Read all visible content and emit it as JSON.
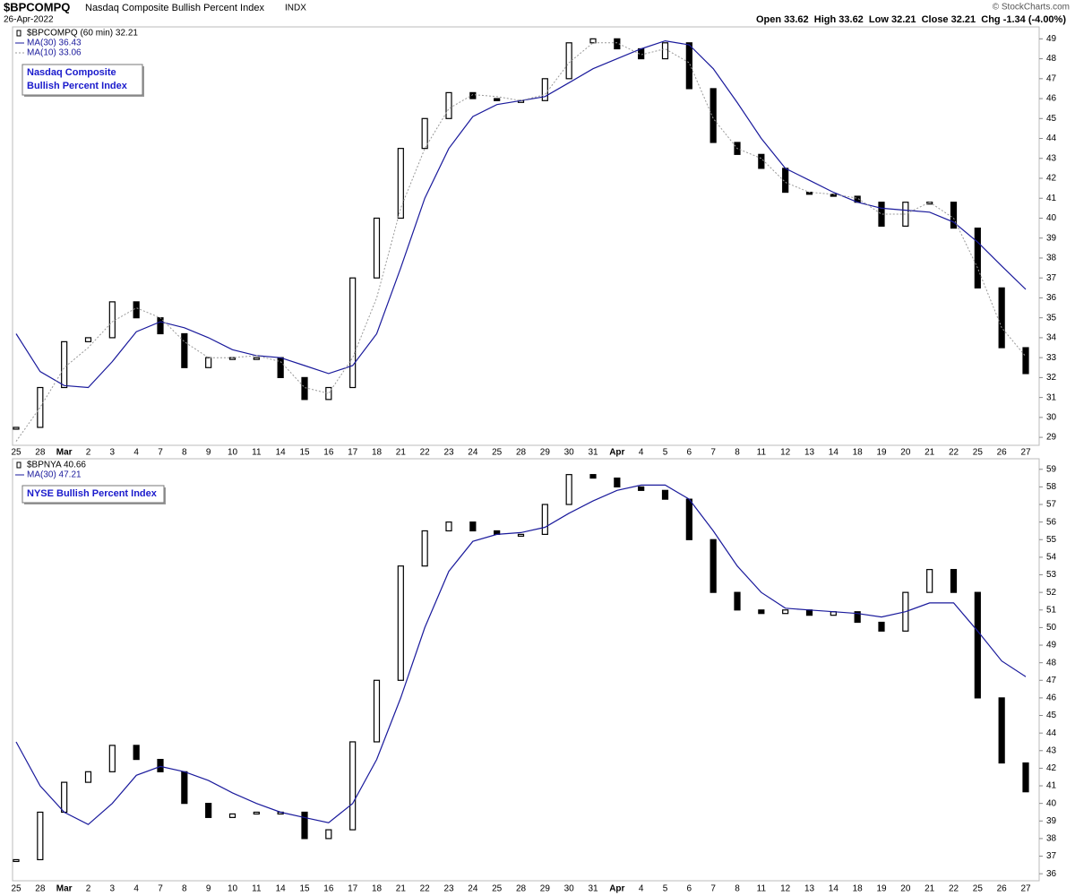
{
  "header": {
    "symbol": "$BPCOMPQ",
    "name": "Nasdaq Composite Bullish Percent Index",
    "exchange": "INDX",
    "date": "26-Apr-2022",
    "copyright": "© StockCharts.com",
    "quote": "Open 33.62  High 33.62  Low 32.21  Close 32.21  Chg -1.34 (-4.00%)"
  },
  "chart_data": [
    {
      "type": "line",
      "box_lines": [
        "Nasdaq Composite",
        "Bullish Percent Index"
      ],
      "categories": [
        "25",
        "28",
        "Mar",
        "2",
        "3",
        "4",
        "7",
        "8",
        "9",
        "10",
        "11",
        "14",
        "15",
        "16",
        "17",
        "18",
        "21",
        "22",
        "23",
        "24",
        "25",
        "28",
        "29",
        "30",
        "31",
        "Apr",
        "4",
        "5",
        "6",
        "7",
        "8",
        "11",
        "12",
        "13",
        "14",
        "18",
        "19",
        "20",
        "21",
        "22",
        "25",
        "26",
        "27"
      ],
      "ylim": [
        28.6,
        49.6
      ],
      "yticks": [
        29,
        30,
        31,
        32,
        33,
        34,
        35,
        36,
        37,
        38,
        39,
        40,
        41,
        42,
        43,
        44,
        45,
        46,
        47,
        48,
        49
      ],
      "series": [
        {
          "name": "$BPCOMPQ (60 min) 32.21",
          "color": "#000000",
          "style": "bars",
          "values": [
            29.5,
            31.5,
            33.8,
            34,
            35.8,
            35,
            34.2,
            32.5,
            33,
            33,
            33,
            32,
            30.9,
            31.5,
            37,
            40,
            43.5,
            45,
            46.3,
            46,
            45.9,
            45.9,
            47,
            48.8,
            49,
            48.5,
            48,
            48.8,
            46.5,
            43.8,
            43.2,
            42.5,
            41.3,
            41.2,
            41.1,
            40.8,
            39.6,
            40.8,
            40.8,
            39.5,
            36.5,
            33.5,
            32.2
          ]
        },
        {
          "name": "MA(30) 36.43",
          "color": "#1a1a9c",
          "style": "solid",
          "values": [
            34.2,
            32.3,
            31.6,
            31.5,
            32.8,
            34.3,
            34.8,
            34.5,
            34,
            33.4,
            33.1,
            33,
            32.6,
            32.2,
            32.6,
            34.2,
            37.5,
            41,
            43.5,
            45.1,
            45.7,
            45.9,
            46.1,
            46.8,
            47.5,
            48,
            48.5,
            48.9,
            48.7,
            47.5,
            45.8,
            44,
            42.5,
            41.9,
            41.3,
            40.8,
            40.5,
            40.4,
            40.3,
            39.8,
            38.8,
            37.6,
            36.43
          ]
        },
        {
          "name": "MA(10) 33.06",
          "color": "#999999",
          "style": "dotted",
          "values": [
            28.8,
            30.5,
            32.5,
            33.5,
            34.8,
            35.5,
            35,
            33.8,
            33,
            33,
            33.1,
            32.8,
            31.5,
            31.2,
            33,
            36,
            40.5,
            43.5,
            45.5,
            46.2,
            46.1,
            45.9,
            46.2,
            47.8,
            48.8,
            48.8,
            48.2,
            48.5,
            47.8,
            45,
            43.5,
            43,
            41.8,
            41.3,
            41.2,
            41,
            40.2,
            40.2,
            40.8,
            40,
            37.5,
            34.5,
            33.06
          ]
        }
      ]
    },
    {
      "type": "line",
      "box_lines": [
        "NYSE Bullish Percent Index"
      ],
      "categories": [
        "25",
        "28",
        "Mar",
        "2",
        "3",
        "4",
        "7",
        "8",
        "9",
        "10",
        "11",
        "14",
        "15",
        "16",
        "17",
        "18",
        "21",
        "22",
        "23",
        "24",
        "25",
        "28",
        "29",
        "30",
        "31",
        "Apr",
        "4",
        "5",
        "6",
        "7",
        "8",
        "11",
        "12",
        "13",
        "14",
        "18",
        "19",
        "20",
        "21",
        "22",
        "25",
        "26",
        "27"
      ],
      "ylim": [
        35.6,
        59.6
      ],
      "yticks": [
        36,
        37,
        38,
        39,
        40,
        41,
        42,
        43,
        44,
        45,
        46,
        47,
        48,
        49,
        50,
        51,
        52,
        53,
        54,
        55,
        56,
        57,
        58,
        59
      ],
      "series": [
        {
          "name": "$BPNYA 40.66",
          "color": "#000000",
          "style": "bars",
          "values": [
            36.8,
            39.5,
            41.2,
            41.8,
            43.3,
            42.5,
            41.8,
            40,
            39.2,
            39.4,
            39.5,
            39.5,
            38,
            38.5,
            43.5,
            47,
            53.5,
            55.5,
            56,
            55.5,
            55.3,
            55.3,
            57,
            58.7,
            58.5,
            58,
            57.8,
            57.3,
            55,
            52,
            51,
            50.8,
            51,
            50.7,
            50.9,
            50.3,
            49.8,
            52,
            53.3,
            52,
            46,
            42.3,
            40.66
          ]
        },
        {
          "name": "MA(30) 47.21",
          "color": "#1a1a9c",
          "style": "solid",
          "values": [
            43.5,
            41,
            39.5,
            38.8,
            40,
            41.6,
            42.1,
            41.8,
            41.3,
            40.6,
            40,
            39.5,
            39.2,
            38.9,
            40,
            42.5,
            46,
            50,
            53.2,
            54.9,
            55.3,
            55.4,
            55.7,
            56.5,
            57.2,
            57.8,
            58.1,
            58.1,
            57.3,
            55.5,
            53.5,
            52,
            51.1,
            51,
            50.9,
            50.8,
            50.6,
            50.9,
            51.4,
            51.4,
            49.8,
            48.1,
            47.21
          ]
        }
      ]
    }
  ]
}
